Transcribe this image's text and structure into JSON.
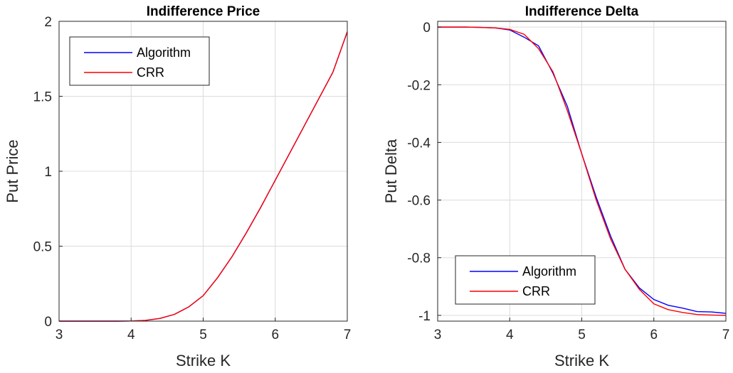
{
  "chart_data": [
    {
      "type": "line",
      "title": "Indifference Price",
      "xlabel": "Strike K",
      "ylabel": "Put Price",
      "xlim": [
        3,
        7
      ],
      "ylim": [
        0,
        2
      ],
      "xticks": [
        "3",
        "4",
        "5",
        "6",
        "7"
      ],
      "yticks": [
        "0",
        "0.5",
        "1",
        "1.5",
        "2"
      ],
      "grid": true,
      "legend_position": "top-left",
      "x": [
        3.0,
        3.2,
        3.4,
        3.6,
        3.8,
        4.0,
        4.2,
        4.4,
        4.6,
        4.8,
        5.0,
        5.2,
        5.4,
        5.6,
        5.8,
        6.0,
        6.2,
        6.4,
        6.6,
        6.8,
        7.0
      ],
      "series": [
        {
          "name": "Algorithm",
          "color": "#0000ff",
          "values": [
            0.0,
            0.0,
            0.0,
            0.0,
            0.0,
            0.001,
            0.005,
            0.018,
            0.045,
            0.095,
            0.17,
            0.29,
            0.43,
            0.59,
            0.76,
            0.94,
            1.12,
            1.3,
            1.48,
            1.66,
            1.93
          ]
        },
        {
          "name": "CRR",
          "color": "#ff0000",
          "values": [
            0.0,
            0.0,
            0.0,
            0.0,
            0.0,
            0.001,
            0.005,
            0.018,
            0.045,
            0.095,
            0.17,
            0.29,
            0.43,
            0.59,
            0.76,
            0.94,
            1.12,
            1.3,
            1.48,
            1.66,
            1.93
          ]
        }
      ]
    },
    {
      "type": "line",
      "title": "Indifference Delta",
      "xlabel": "Strike K",
      "ylabel": "Put Delta",
      "xlim": [
        3,
        7
      ],
      "ylim": [
        -1.02,
        0.02
      ],
      "xticks": [
        "3",
        "4",
        "5",
        "6",
        "7"
      ],
      "yticks": [
        "0",
        "-0.2",
        "-0.4",
        "-0.6",
        "-0.8",
        "-1"
      ],
      "grid": true,
      "legend_position": "bottom-left",
      "x": [
        3.0,
        3.2,
        3.4,
        3.6,
        3.8,
        4.0,
        4.2,
        4.4,
        4.6,
        4.8,
        5.0,
        5.2,
        5.4,
        5.6,
        5.8,
        6.0,
        6.2,
        6.4,
        6.6,
        6.8,
        7.0
      ],
      "series": [
        {
          "name": "Algorithm",
          "color": "#0000ff",
          "values": [
            0.0,
            0.0,
            0.0,
            -0.001,
            -0.003,
            -0.01,
            -0.035,
            -0.065,
            -0.16,
            -0.275,
            -0.44,
            -0.59,
            -0.725,
            -0.84,
            -0.905,
            -0.945,
            -0.965,
            -0.975,
            -0.987,
            -0.988,
            -0.993
          ]
        },
        {
          "name": "CRR",
          "color": "#ff0000",
          "values": [
            0.0,
            0.0,
            0.0,
            -0.001,
            -0.003,
            -0.008,
            -0.025,
            -0.075,
            -0.155,
            -0.29,
            -0.44,
            -0.6,
            -0.735,
            -0.84,
            -0.91,
            -0.96,
            -0.98,
            -0.99,
            -0.997,
            -0.999,
            -1.0
          ]
        }
      ]
    }
  ]
}
